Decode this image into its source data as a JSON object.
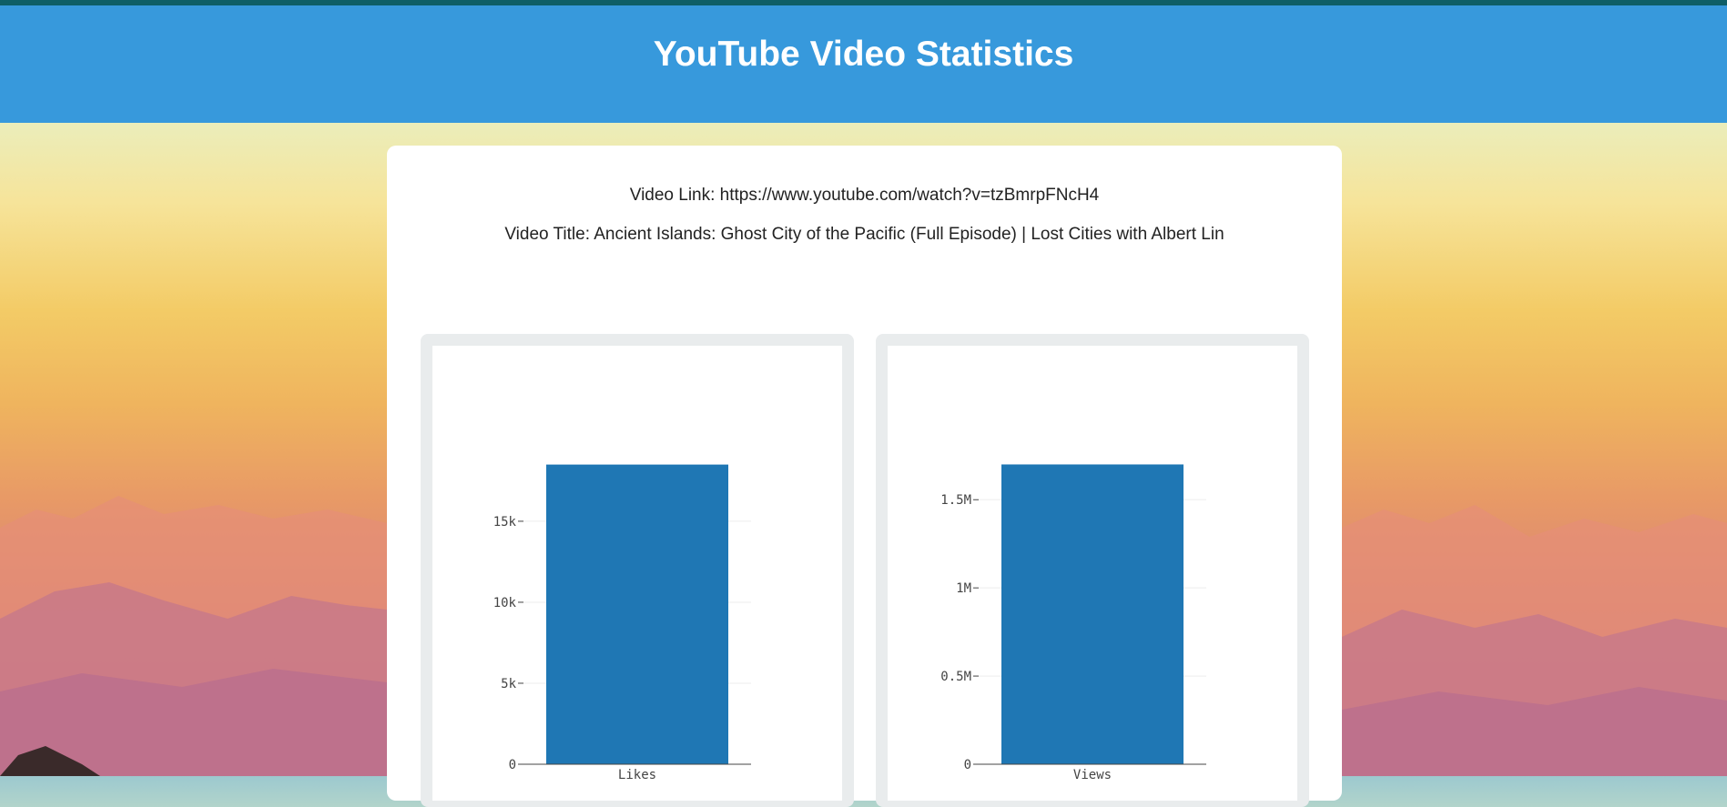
{
  "header": {
    "title": "YouTube Video Statistics"
  },
  "video": {
    "link_text": "Video Link: https://www.youtube.com/watch?v=tzBmrpFNcH4",
    "title_text": "Video Title: Ancient Islands: Ghost City of the Pacific (Full Episode) | Lost Cities with Albert Lin"
  },
  "colors": {
    "header": "#3799dc",
    "bar": "#1f77b4"
  },
  "chart_data": [
    {
      "type": "bar",
      "categories": [
        "Likes"
      ],
      "values": [
        18500
      ],
      "ylim": [
        0,
        20500
      ],
      "yticks": [
        0,
        5000,
        10000,
        15000
      ],
      "ytick_labels": [
        "0",
        "5k",
        "10k",
        "15k"
      ],
      "title": "",
      "xlabel": "",
      "ylabel": ""
    },
    {
      "type": "bar",
      "categories": [
        "Views"
      ],
      "values": [
        1700000
      ],
      "ylim": [
        0,
        1883000
      ],
      "yticks": [
        0,
        500000,
        1000000,
        1500000
      ],
      "ytick_labels": [
        "0",
        "0.5M",
        "1M",
        "1.5M"
      ],
      "title": "",
      "xlabel": "",
      "ylabel": ""
    }
  ]
}
